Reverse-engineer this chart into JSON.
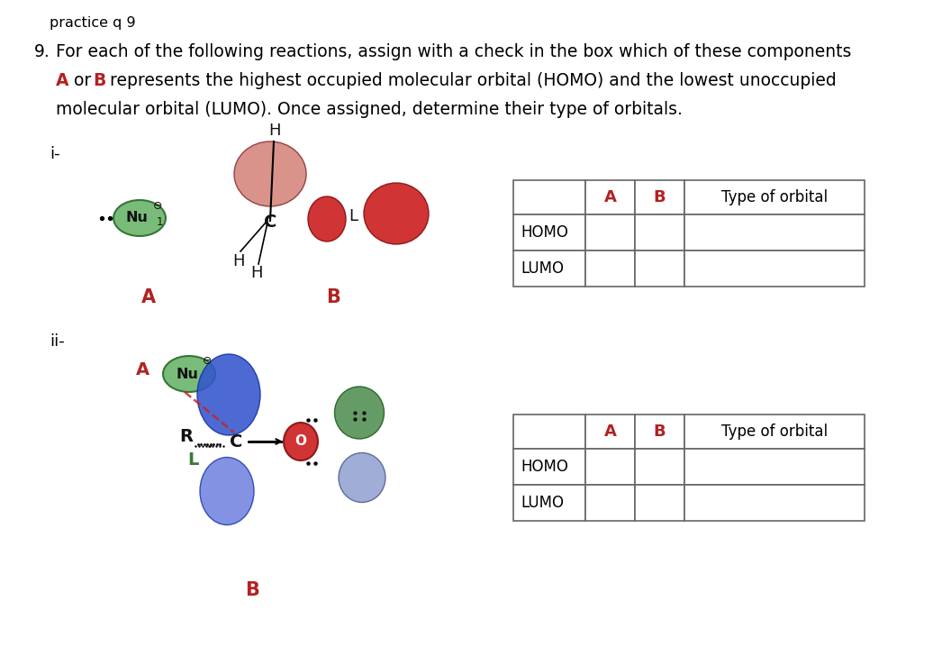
{
  "title": "practice q 9",
  "bg_color": "#ffffff",
  "text_color": "#000000",
  "red_color": "#b22222",
  "green_color": "#3a7a3a",
  "blue_color": "#3344bb",
  "question_number": "9.",
  "q_line1": "For each of the following reactions, assign with a check in the box which of these components",
  "q_line2_pre": " or ",
  "q_line2_post": " represents the highest occupied molecular orbital (HOMO) and the lowest unoccupied",
  "q_line3": "molecular orbital (LUMO). Once assigned, determine their type of orbitals.",
  "label_i": "i-",
  "label_ii": "ii-",
  "label_A": "A",
  "label_B": "B",
  "row_labels": [
    "HOMO",
    "LUMO"
  ],
  "col_labels": [
    "A",
    "B",
    "Type of orbital"
  ],
  "nu_color": "#6ab56a",
  "nu_edge_color": "#2a6a2a",
  "salmon_color": "#d4847a",
  "salmon_edge": "#8a3030",
  "red_lobe_color": "#cc2222",
  "red_lobe_edge": "#881111",
  "blue_lobe_color": "#3355cc",
  "blue_lobe_edge": "#1133aa",
  "blue_lobe2_color": "#6677dd",
  "green_lobe_color": "#4a8a4a",
  "green_lobe_edge": "#1a5a1a",
  "purple_lobe_color": "#8899cc",
  "purple_lobe_edge": "#445588"
}
